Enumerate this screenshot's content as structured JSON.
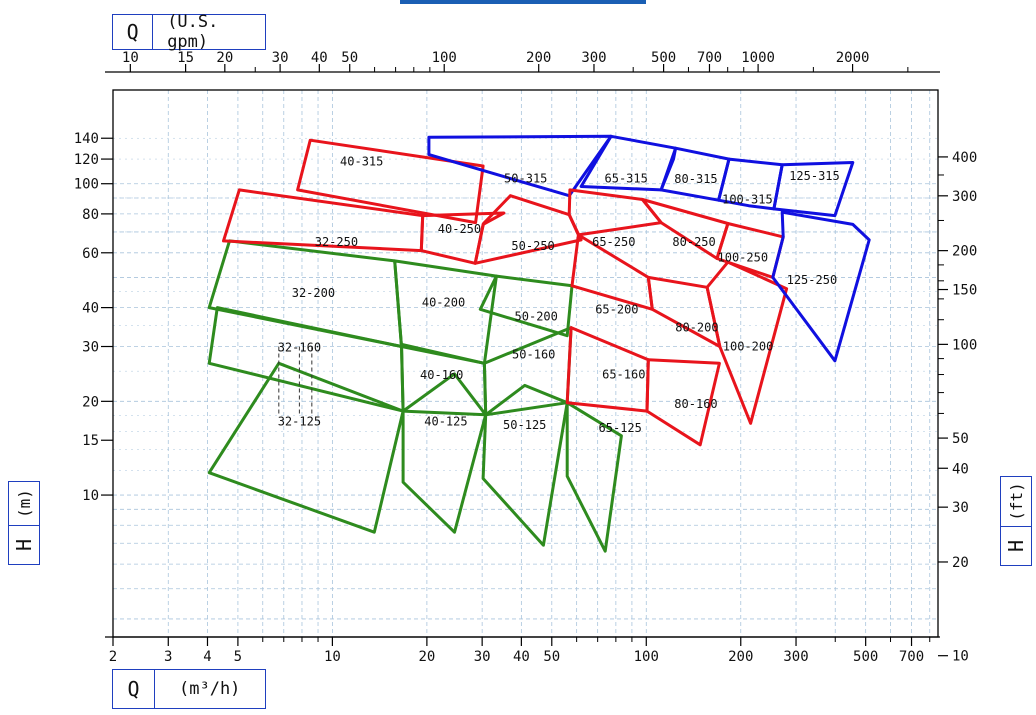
{
  "chart_data": {
    "type": "area",
    "title": "",
    "x_axis_bottom": {
      "symbol": "Q",
      "unit": "(m³/h)",
      "scale": "log",
      "range": [
        2,
        850
      ],
      "ticks": [
        "2",
        "3",
        "4",
        "5",
        "10",
        "20",
        "30",
        "40",
        "50",
        "100",
        "200",
        "300",
        "500",
        "700"
      ]
    },
    "x_axis_top": {
      "symbol": "Q",
      "unit": "(U.S. gpm)",
      "scale": "log",
      "ticks": [
        "10",
        "15",
        "20",
        "30",
        "40",
        "50",
        "100",
        "200",
        "300",
        "500",
        "700",
        "1000",
        "2000"
      ]
    },
    "y_axis_left": {
      "symbol": "H",
      "unit": "(m)",
      "scale": "log",
      "range": [
        3.5,
        200
      ],
      "ticks": [
        "10",
        "15",
        "20",
        "30",
        "40",
        "60",
        "80",
        "100",
        "120",
        "140"
      ]
    },
    "y_axis_right": {
      "symbol": "H",
      "unit": "(ft)",
      "ticks": [
        "10",
        "20",
        "30",
        "40",
        "50",
        "100",
        "150",
        "200",
        "300",
        "400"
      ]
    },
    "colors": {
      "green": "#2e8b1e",
      "red": "#e8141c",
      "blue": "#1010e0",
      "grid": "#a9c4dc",
      "label_border": "#1f3fbf"
    },
    "series": [
      {
        "name": "32-125",
        "color": "green",
        "points": [
          [
            4.05,
            11.8
          ],
          [
            6.75,
            26.5
          ],
          [
            16.8,
            18.6
          ],
          [
            13.6,
            7.6
          ]
        ]
      },
      {
        "name": "32-160",
        "color": "green",
        "points": [
          [
            4.05,
            26.5
          ],
          [
            4.3,
            40
          ],
          [
            16.6,
            30
          ],
          [
            16.8,
            18.6
          ]
        ]
      },
      {
        "name": "32-200",
        "color": "green",
        "points": [
          [
            4.05,
            40
          ],
          [
            4.7,
            65.5
          ],
          [
            15.8,
            56.5
          ],
          [
            16.6,
            30
          ]
        ]
      },
      {
        "name": "32-250",
        "color": "red",
        "points": [
          [
            4.5,
            65.5
          ],
          [
            5.05,
            95.5
          ],
          [
            19.4,
            79
          ],
          [
            19.2,
            61
          ]
        ]
      },
      {
        "name": "40-315",
        "color": "red",
        "points": [
          [
            7.75,
            95.5
          ],
          [
            8.5,
            138
          ],
          [
            30.2,
            114
          ],
          [
            28.6,
            75
          ]
        ]
      },
      {
        "name": "40-125",
        "color": "green",
        "points": [
          [
            16.8,
            11
          ],
          [
            16.8,
            18.6
          ],
          [
            24.5,
            24.5
          ],
          [
            30.8,
            18.1
          ],
          [
            24.5,
            7.6
          ]
        ]
      },
      {
        "name": "40-160",
        "color": "green",
        "points": [
          [
            16.6,
            30.5
          ],
          [
            30.5,
            26.5
          ],
          [
            30.8,
            18.1
          ],
          [
            16.8,
            18.6
          ]
        ]
      },
      {
        "name": "40-200",
        "color": "green",
        "points": [
          [
            15.8,
            56.5
          ],
          [
            16.6,
            30
          ],
          [
            30.5,
            26.5
          ],
          [
            33.3,
            50.5
          ]
        ]
      },
      {
        "name": "40-250",
        "color": "red",
        "points": [
          [
            19.4,
            79
          ],
          [
            19.2,
            61
          ],
          [
            28.5,
            55.5
          ],
          [
            30.2,
            74
          ],
          [
            35.2,
            80.5
          ]
        ]
      },
      {
        "name": "50-125",
        "color": "green",
        "points": [
          [
            30.2,
            11.3
          ],
          [
            30.8,
            18.1
          ],
          [
            41,
            22.5
          ],
          [
            56,
            19.8
          ],
          [
            47,
            6.9
          ]
        ]
      },
      {
        "name": "50-160",
        "color": "green",
        "points": [
          [
            30.5,
            26.5
          ],
          [
            30.8,
            18.1
          ],
          [
            56,
            19.8
          ],
          [
            57.6,
            34.5
          ]
        ]
      },
      {
        "name": "50-200",
        "color": "green",
        "points": [
          [
            33.3,
            50.5
          ],
          [
            29.6,
            39.5
          ],
          [
            56,
            32.5
          ],
          [
            58,
            47
          ]
        ]
      },
      {
        "name": "50-250",
        "color": "red",
        "points": [
          [
            28.5,
            55.5
          ],
          [
            30.3,
            74.5
          ],
          [
            36.9,
            91.5
          ],
          [
            56.8,
            79.5
          ],
          [
            62,
            66
          ]
        ]
      },
      {
        "name": "50-315",
        "color": "blue",
        "points": [
          [
            20.3,
            124
          ],
          [
            20.3,
            141
          ],
          [
            77.2,
            142
          ],
          [
            56.8,
            91.5
          ]
        ]
      },
      {
        "name": "65-125",
        "color": "green",
        "points": [
          [
            56,
            19.8
          ],
          [
            56,
            11.5
          ],
          [
            74,
            6.6
          ],
          [
            83.3,
            15.5
          ]
        ]
      },
      {
        "name": "65-160",
        "color": "red",
        "points": [
          [
            56,
            19.8
          ],
          [
            57.6,
            34.5
          ],
          [
            101.5,
            27.2
          ],
          [
            100.5,
            18.6
          ]
        ]
      },
      {
        "name": "65-200",
        "color": "red",
        "points": [
          [
            58,
            47
          ],
          [
            60.8,
            68.5
          ],
          [
            101.5,
            50
          ],
          [
            104.5,
            39.5
          ]
        ]
      },
      {
        "name": "65-250",
        "color": "red",
        "points": [
          [
            60.8,
            68.5
          ],
          [
            56.8,
            79.5
          ],
          [
            57.1,
            95.5
          ],
          [
            97.3,
            89
          ],
          [
            111.5,
            75
          ]
        ]
      },
      {
        "name": "65-315",
        "color": "blue",
        "points": [
          [
            77.2,
            142
          ],
          [
            62,
            98
          ],
          [
            111.5,
            95.5
          ],
          [
            122.1,
            120
          ],
          [
            124,
            130
          ]
        ]
      },
      {
        "name": "80-160",
        "color": "red",
        "points": [
          [
            101.5,
            27.2
          ],
          [
            100.5,
            18.6
          ],
          [
            148.5,
            14.5
          ],
          [
            171,
            26.5
          ]
        ]
      },
      {
        "name": "80-200",
        "color": "red",
        "points": [
          [
            104.5,
            39.5
          ],
          [
            101.5,
            50
          ],
          [
            156.2,
            46.5
          ],
          [
            171.5,
            30
          ]
        ]
      },
      {
        "name": "80-250",
        "color": "red",
        "points": [
          [
            111.5,
            75
          ],
          [
            97.3,
            89
          ],
          [
            182,
            74.5
          ],
          [
            168,
            57.5
          ]
        ]
      },
      {
        "name": "80-315",
        "color": "blue",
        "points": [
          [
            124,
            130
          ],
          [
            111.5,
            95.5
          ],
          [
            170,
            88.5
          ],
          [
            183.5,
            120
          ]
        ]
      },
      {
        "name": "100-200",
        "color": "red",
        "points": [
          [
            171.5,
            30
          ],
          [
            156.2,
            46.5
          ],
          [
            182,
            56
          ],
          [
            280,
            46
          ],
          [
            215,
            17
          ]
        ]
      },
      {
        "name": "100-250",
        "color": "red",
        "points": [
          [
            182,
            74.5
          ],
          [
            168,
            57.5
          ],
          [
            253,
            50
          ],
          [
            273,
            67.5
          ]
        ]
      },
      {
        "name": "100-315",
        "color": "blue",
        "points": [
          [
            183.5,
            120
          ],
          [
            170,
            88.5
          ],
          [
            212,
            85
          ],
          [
            255,
            83
          ],
          [
            271,
            115
          ]
        ]
      },
      {
        "name": "125-250",
        "color": "blue",
        "points": [
          [
            253,
            50
          ],
          [
            273,
            67.5
          ],
          [
            271,
            81
          ],
          [
            455,
            74
          ],
          [
            513,
            66
          ],
          [
            399,
            27
          ]
        ]
      },
      {
        "name": "125-315",
        "color": "blue",
        "points": [
          [
            271,
            115
          ],
          [
            255,
            83
          ],
          [
            399,
            79
          ],
          [
            455,
            117
          ]
        ]
      }
    ],
    "curve_labels": [
      {
        "text": "40-315",
        "x": 12.4,
        "y": 118
      },
      {
        "text": "50-315",
        "x": 41.3,
        "y": 104
      },
      {
        "text": "65-315",
        "x": 86.3,
        "y": 104
      },
      {
        "text": "80-315",
        "x": 144,
        "y": 103.5
      },
      {
        "text": "100-315",
        "x": 210,
        "y": 89
      },
      {
        "text": "125-315",
        "x": 343.5,
        "y": 106
      },
      {
        "text": "40-250",
        "x": 25.4,
        "y": 71.5
      },
      {
        "text": "32-250",
        "x": 10.3,
        "y": 65
      },
      {
        "text": "50-250",
        "x": 43.6,
        "y": 63
      },
      {
        "text": "65-250",
        "x": 78.8,
        "y": 65
      },
      {
        "text": "80-250",
        "x": 142,
        "y": 65
      },
      {
        "text": "100-250",
        "x": 203,
        "y": 58
      },
      {
        "text": "125-250",
        "x": 337,
        "y": 49
      },
      {
        "text": "32-200",
        "x": 8.7,
        "y": 44.5
      },
      {
        "text": "40-200",
        "x": 22.6,
        "y": 41.5
      },
      {
        "text": "50-200",
        "x": 44.6,
        "y": 37.5
      },
      {
        "text": "65-200",
        "x": 80.6,
        "y": 39.5
      },
      {
        "text": "80-200",
        "x": 145,
        "y": 34.5
      },
      {
        "text": "100-200",
        "x": 211,
        "y": 30
      },
      {
        "text": "32-160",
        "x": 7.85,
        "y": 29.8
      },
      {
        "text": "40-160",
        "x": 22.3,
        "y": 24.3
      },
      {
        "text": "50-160",
        "x": 43.8,
        "y": 28.3
      },
      {
        "text": "65-160",
        "x": 84.8,
        "y": 24.4
      },
      {
        "text": "80-160",
        "x": 144,
        "y": 19.6
      },
      {
        "text": "32-125",
        "x": 7.85,
        "y": 17.2
      },
      {
        "text": "40-125",
        "x": 23,
        "y": 17.2
      },
      {
        "text": "50-125",
        "x": 41,
        "y": 16.8
      },
      {
        "text": "65-125",
        "x": 82.6,
        "y": 16.4
      }
    ],
    "dashed_marks": [
      6.75,
      7.85,
      8.6
    ],
    "grid": true
  }
}
